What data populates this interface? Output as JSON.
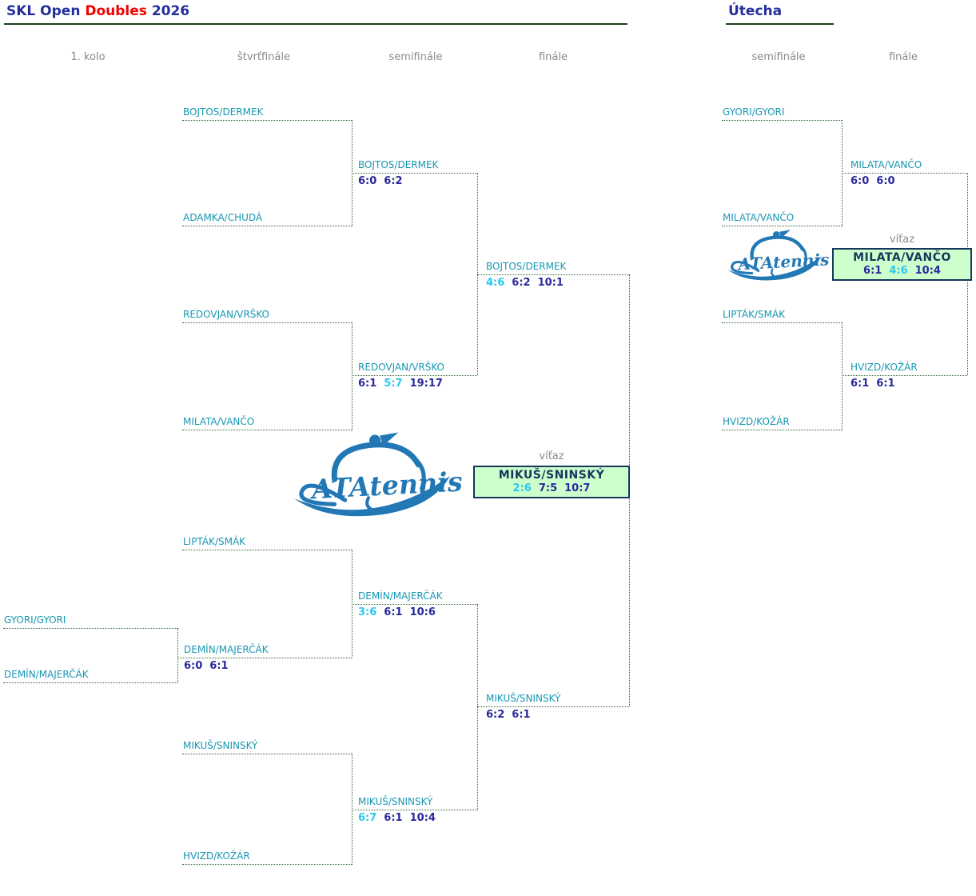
{
  "colors": {
    "team_name": "#1797b2",
    "set_won": "#29299c",
    "set_lost": "#2cc7f0",
    "bracket_line": "#336633",
    "winner_box_bg": "#ccffcc",
    "winner_box_border": "#17365d",
    "title_navy": "#232e9c",
    "title_red": "#f20000",
    "muted_gray": "#8a8a8a",
    "logo_blue": "#2277b5"
  },
  "header": {
    "title_blue": "SKL Open",
    "title_red": "Doubles",
    "title_year": "2026"
  },
  "consolation_header": {
    "title": "Útecha"
  },
  "columns": {
    "main": [
      "1. kolo",
      "štvrťfinále",
      "semifinále",
      "finále"
    ],
    "consolation": [
      "semifinále",
      "finále"
    ]
  },
  "logo": {
    "text": "ATAtennis"
  },
  "winner_label": "víťaz",
  "main": {
    "round1": {
      "team1": "GYORI/GYORI",
      "team2": "DEMÍN/MAJERČÁK"
    },
    "qf1": {
      "team1": "BOJTOS/DERMEK",
      "team2": "ADAMKA/CHUDÁ"
    },
    "qf2": {
      "team1": "REDOVJAN/VRŠKO",
      "team2": "MILATA/VANČO"
    },
    "qf3": {
      "team1": "LIPTÁK/SMÁK"
    },
    "qf4": {
      "team1": "MIKUŠ/SNINSKÝ",
      "team2": "HVIZD/KOŽÁR"
    },
    "r1winner": {
      "name": "DEMÍN/MAJERČÁK",
      "sets": [
        {
          "s": "6:0"
        },
        {
          "s": "6:1"
        }
      ]
    },
    "sf1": {
      "team1": {
        "name": "BOJTOS/DERMEK",
        "sets": [
          {
            "s": "6:0"
          },
          {
            "s": "6:2"
          }
        ]
      },
      "team2": {
        "name": "REDOVJAN/VRŠKO",
        "sets": [
          {
            "s": "6:1"
          },
          {
            "s": "5:7",
            "lost": true
          },
          {
            "s": "19:17"
          }
        ]
      }
    },
    "sf2": {
      "team1": {
        "name": "DEMÍN/MAJERČÁK",
        "sets": [
          {
            "s": "3:6",
            "lost": true
          },
          {
            "s": "6:1"
          },
          {
            "s": "10:6"
          }
        ]
      },
      "team2": {
        "name": "MIKUŠ/SNINSKÝ",
        "sets": [
          {
            "s": "6:7",
            "lost": true
          },
          {
            "s": "6:1"
          },
          {
            "s": "10:4"
          }
        ]
      }
    },
    "final": {
      "team1": {
        "name": "BOJTOS/DERMEK",
        "sets": [
          {
            "s": "4:6",
            "lost": true
          },
          {
            "s": "6:2"
          },
          {
            "s": "10:1"
          }
        ]
      },
      "team2": {
        "name": "MIKUŠ/SNINSKÝ",
        "sets": [
          {
            "s": "6:2"
          },
          {
            "s": "6:1"
          }
        ]
      }
    },
    "champion": {
      "name": "MIKUŠ/SNINSKÝ",
      "sets": [
        {
          "s": "2:6",
          "lost": true
        },
        {
          "s": "7:5"
        },
        {
          "s": "10:7"
        }
      ]
    }
  },
  "consolation": {
    "sf1": {
      "team1": "GYORI/GYORI",
      "team2": "MILATA/VANČO"
    },
    "sf2": {
      "team1": "LIPTÁK/SMÁK",
      "team2": "HVIZD/KOŽÁR"
    },
    "final": {
      "team1": {
        "name": "MILATA/VANČO",
        "sets": [
          {
            "s": "6:0"
          },
          {
            "s": "6:0"
          }
        ]
      },
      "team2": {
        "name": "HVIZD/KOŽÁR",
        "sets": [
          {
            "s": "6:1"
          },
          {
            "s": "6:1"
          }
        ]
      }
    },
    "champion": {
      "name": "MILATA/VANČO",
      "sets": [
        {
          "s": "6:1"
        },
        {
          "s": "4:6",
          "lost": true
        },
        {
          "s": "10:4"
        }
      ]
    }
  }
}
